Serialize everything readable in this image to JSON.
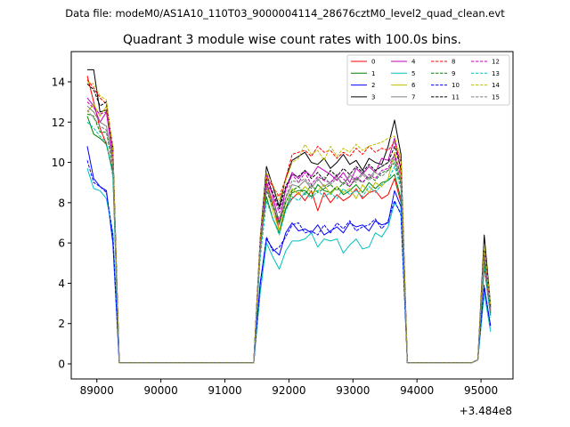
{
  "figure": {
    "suptitle": "Data file: modeM0/AS1A10_110T03_9000004114_28676cztM0_level2_quad_clean.evt"
  },
  "chart_data": {
    "type": "line",
    "title": "Quadrant 3 module wise count rates with 100.0s bins.",
    "xlabel": "",
    "ylabel": "",
    "x_offset_label": "+3.484e8",
    "xlim": [
      88600,
      95500
    ],
    "ylim": [
      -0.75,
      15.5
    ],
    "xticks": [
      89000,
      90000,
      91000,
      92000,
      93000,
      94000,
      95000
    ],
    "xtick_labels": [
      "89000",
      "90000",
      "91000",
      "92000",
      "93000",
      "94000",
      "95000"
    ],
    "yticks": [
      0,
      2,
      4,
      6,
      8,
      10,
      12,
      14
    ],
    "ytick_labels": [
      "0",
      "2",
      "4",
      "6",
      "8",
      "10",
      "12",
      "14"
    ],
    "legend_position": "top-right",
    "x": [
      88850,
      88950,
      89050,
      89150,
      89250,
      89350,
      89450,
      89550,
      89650,
      89750,
      89850,
      89950,
      90050,
      90150,
      90250,
      90350,
      90450,
      90550,
      90650,
      90750,
      90850,
      90950,
      91050,
      91150,
      91250,
      91350,
      91450,
      91550,
      91650,
      91750,
      91850,
      91950,
      92050,
      92150,
      92250,
      92350,
      92450,
      92550,
      92650,
      92750,
      92850,
      92950,
      93050,
      93150,
      93250,
      93350,
      93450,
      93550,
      93650,
      93750,
      93850,
      93950,
      94050,
      94150,
      94250,
      94350,
      94450,
      94550,
      94650,
      94750,
      94850,
      94950,
      95050,
      95150
    ],
    "series": [
      {
        "name": "0",
        "color": "#ff0000",
        "dash": "solid",
        "values": [
          14.3,
          13.0,
          11.7,
          10.9,
          9.6,
          0.05,
          0.05,
          0.05,
          0.05,
          0.05,
          0.05,
          0.05,
          0.05,
          0.05,
          0.05,
          0.05,
          0.05,
          0.05,
          0.05,
          0.05,
          0.05,
          0.05,
          0.05,
          0.05,
          0.05,
          0.05,
          0.05,
          5.8,
          9.0,
          8.0,
          6.6,
          7.7,
          8.2,
          8.5,
          8.1,
          8.6,
          7.6,
          8.5,
          8.0,
          8.4,
          8.1,
          8.3,
          8.7,
          8.2,
          8.5,
          8.6,
          8.2,
          8.4,
          9.2,
          8.0,
          0.05,
          0.05,
          0.05,
          0.05,
          0.05,
          0.05,
          0.05,
          0.05,
          0.05,
          0.05,
          0.05,
          0.2,
          4.8,
          2.4
        ]
      },
      {
        "name": "1",
        "color": "#008000",
        "dash": "solid",
        "values": [
          12.3,
          11.4,
          11.2,
          10.9,
          9.5,
          0.05,
          0.05,
          0.05,
          0.05,
          0.05,
          0.05,
          0.05,
          0.05,
          0.05,
          0.05,
          0.05,
          0.05,
          0.05,
          0.05,
          0.05,
          0.05,
          0.05,
          0.05,
          0.05,
          0.05,
          0.05,
          0.05,
          6.0,
          8.3,
          7.2,
          6.5,
          7.7,
          8.5,
          8.6,
          8.6,
          8.3,
          8.9,
          8.6,
          8.5,
          8.8,
          8.4,
          8.6,
          8.9,
          8.5,
          9.0,
          8.7,
          9.0,
          9.1,
          9.4,
          8.2,
          0.05,
          0.05,
          0.05,
          0.05,
          0.05,
          0.05,
          0.05,
          0.05,
          0.05,
          0.05,
          0.05,
          0.2,
          5.0,
          2.5
        ]
      },
      {
        "name": "2",
        "color": "#0000ff",
        "dash": "solid",
        "values": [
          10.8,
          9.2,
          8.8,
          8.6,
          6.0,
          0.05,
          0.05,
          0.05,
          0.05,
          0.05,
          0.05,
          0.05,
          0.05,
          0.05,
          0.05,
          0.05,
          0.05,
          0.05,
          0.05,
          0.05,
          0.05,
          0.05,
          0.05,
          0.05,
          0.05,
          0.05,
          0.05,
          4.0,
          6.2,
          5.7,
          5.4,
          6.5,
          7.0,
          6.6,
          6.7,
          6.5,
          6.9,
          6.4,
          6.6,
          6.8,
          6.5,
          7.0,
          6.8,
          6.9,
          6.6,
          7.1,
          6.9,
          7.0,
          8.6,
          7.8,
          0.05,
          0.05,
          0.05,
          0.05,
          0.05,
          0.05,
          0.05,
          0.05,
          0.05,
          0.05,
          0.05,
          0.2,
          3.8,
          1.9
        ]
      },
      {
        "name": "3",
        "color": "#000000",
        "dash": "solid",
        "values": [
          14.6,
          14.6,
          12.5,
          12.6,
          10.8,
          0.05,
          0.05,
          0.05,
          0.05,
          0.05,
          0.05,
          0.05,
          0.05,
          0.05,
          0.05,
          0.05,
          0.05,
          0.05,
          0.05,
          0.05,
          0.05,
          0.05,
          0.05,
          0.05,
          0.05,
          0.05,
          0.05,
          6.2,
          9.8,
          8.8,
          7.8,
          9.2,
          10.1,
          10.3,
          10.5,
          10.0,
          9.9,
          10.2,
          9.7,
          10.0,
          10.4,
          9.9,
          10.1,
          9.6,
          10.2,
          10.0,
          9.9,
          10.8,
          12.1,
          10.4,
          0.05,
          0.05,
          0.05,
          0.05,
          0.05,
          0.05,
          0.05,
          0.05,
          0.05,
          0.05,
          0.05,
          0.2,
          6.4,
          2.9
        ]
      },
      {
        "name": "4",
        "color": "#bf00bf",
        "dash": "solid",
        "values": [
          13.2,
          12.8,
          12.0,
          12.5,
          10.2,
          0.05,
          0.05,
          0.05,
          0.05,
          0.05,
          0.05,
          0.05,
          0.05,
          0.05,
          0.05,
          0.05,
          0.05,
          0.05,
          0.05,
          0.05,
          0.05,
          0.05,
          0.05,
          0.05,
          0.05,
          0.05,
          0.05,
          6.0,
          9.5,
          8.3,
          7.0,
          8.7,
          9.5,
          9.2,
          9.6,
          9.3,
          9.8,
          9.6,
          9.4,
          9.1,
          9.5,
          9.0,
          9.7,
          9.4,
          9.8,
          9.5,
          10.2,
          10.1,
          11.2,
          9.6,
          0.05,
          0.05,
          0.05,
          0.05,
          0.05,
          0.05,
          0.05,
          0.05,
          0.05,
          0.05,
          0.05,
          0.2,
          5.6,
          2.7
        ]
      },
      {
        "name": "5",
        "color": "#00bfbf",
        "dash": "solid",
        "values": [
          9.7,
          8.7,
          8.6,
          8.2,
          6.5,
          0.05,
          0.05,
          0.05,
          0.05,
          0.05,
          0.05,
          0.05,
          0.05,
          0.05,
          0.05,
          0.05,
          0.05,
          0.05,
          0.05,
          0.05,
          0.05,
          0.05,
          0.05,
          0.05,
          0.05,
          0.05,
          0.05,
          3.5,
          6.0,
          5.3,
          4.7,
          5.6,
          6.1,
          6.1,
          6.2,
          6.5,
          5.8,
          6.2,
          6.1,
          6.2,
          5.5,
          5.9,
          6.2,
          5.7,
          5.8,
          6.5,
          6.3,
          6.8,
          8.0,
          7.5,
          0.05,
          0.05,
          0.05,
          0.05,
          0.05,
          0.05,
          0.05,
          0.05,
          0.05,
          0.05,
          0.05,
          0.2,
          3.5,
          1.6
        ]
      },
      {
        "name": "6",
        "color": "#bfbf00",
        "dash": "solid",
        "values": [
          12.5,
          12.9,
          12.3,
          12.8,
          10.5,
          0.05,
          0.05,
          0.05,
          0.05,
          0.05,
          0.05,
          0.05,
          0.05,
          0.05,
          0.05,
          0.05,
          0.05,
          0.05,
          0.05,
          0.05,
          0.05,
          0.05,
          0.05,
          0.05,
          0.05,
          0.05,
          0.05,
          5.5,
          8.8,
          7.6,
          6.6,
          8.0,
          8.7,
          8.4,
          8.8,
          8.5,
          8.6,
          8.9,
          8.4,
          8.8,
          8.5,
          8.7,
          8.2,
          8.9,
          8.5,
          9.0,
          8.8,
          9.2,
          10.5,
          9.4,
          0.05,
          0.05,
          0.05,
          0.05,
          0.05,
          0.05,
          0.05,
          0.05,
          0.05,
          0.05,
          0.05,
          0.2,
          5.8,
          2.7
        ]
      },
      {
        "name": "7",
        "color": "#808080",
        "dash": "solid",
        "values": [
          12.8,
          12.5,
          12.0,
          11.8,
          10.0,
          0.05,
          0.05,
          0.05,
          0.05,
          0.05,
          0.05,
          0.05,
          0.05,
          0.05,
          0.05,
          0.05,
          0.05,
          0.05,
          0.05,
          0.05,
          0.05,
          0.05,
          0.05,
          0.05,
          0.05,
          0.05,
          0.05,
          5.7,
          8.9,
          7.9,
          6.9,
          8.2,
          8.9,
          8.8,
          9.1,
          8.7,
          9.2,
          8.8,
          9.0,
          9.3,
          8.9,
          9.4,
          9.1,
          9.5,
          9.2,
          9.6,
          9.8,
          10.0,
          10.3,
          9.0,
          0.05,
          0.05,
          0.05,
          0.05,
          0.05,
          0.05,
          0.05,
          0.05,
          0.05,
          0.05,
          0.05,
          0.2,
          5.3,
          2.6
        ]
      },
      {
        "name": "8",
        "color": "#ff0000",
        "dash": "dashed",
        "values": [
          14.1,
          13.7,
          13.2,
          12.9,
          10.6,
          0.05,
          0.05,
          0.05,
          0.05,
          0.05,
          0.05,
          0.05,
          0.05,
          0.05,
          0.05,
          0.05,
          0.05,
          0.05,
          0.05,
          0.05,
          0.05,
          0.05,
          0.05,
          0.05,
          0.05,
          0.05,
          0.05,
          6.0,
          9.3,
          8.8,
          8.3,
          9.2,
          10.4,
          10.5,
          10.6,
          10.3,
          10.8,
          10.5,
          10.6,
          10.2,
          10.5,
          10.3,
          10.7,
          10.4,
          10.8,
          10.5,
          10.7,
          10.6,
          11.0,
          10.0,
          0.05,
          0.05,
          0.05,
          0.05,
          0.05,
          0.05,
          0.05,
          0.05,
          0.05,
          0.05,
          0.05,
          0.2,
          5.6,
          2.8
        ]
      },
      {
        "name": "9",
        "color": "#008000",
        "dash": "dashed",
        "values": [
          12.4,
          12.3,
          11.5,
          11.5,
          9.8,
          0.05,
          0.05,
          0.05,
          0.05,
          0.05,
          0.05,
          0.05,
          0.05,
          0.05,
          0.05,
          0.05,
          0.05,
          0.05,
          0.05,
          0.05,
          0.05,
          0.05,
          0.05,
          0.05,
          0.05,
          0.05,
          0.05,
          5.6,
          8.6,
          7.8,
          7.0,
          8.0,
          8.6,
          8.8,
          8.4,
          8.9,
          8.5,
          8.7,
          8.9,
          8.6,
          9.0,
          8.8,
          9.2,
          9.0,
          9.3,
          9.1,
          9.5,
          9.6,
          10.0,
          8.9,
          0.05,
          0.05,
          0.05,
          0.05,
          0.05,
          0.05,
          0.05,
          0.05,
          0.05,
          0.05,
          0.05,
          0.2,
          5.2,
          2.5
        ]
      },
      {
        "name": "10",
        "color": "#0000ff",
        "dash": "dashed",
        "values": [
          10.1,
          9.0,
          8.8,
          8.5,
          6.4,
          0.05,
          0.05,
          0.05,
          0.05,
          0.05,
          0.05,
          0.05,
          0.05,
          0.05,
          0.05,
          0.05,
          0.05,
          0.05,
          0.05,
          0.05,
          0.05,
          0.05,
          0.05,
          0.05,
          0.05,
          0.05,
          0.05,
          3.9,
          6.3,
          5.6,
          5.8,
          6.3,
          6.9,
          7.0,
          6.5,
          6.6,
          6.4,
          6.9,
          6.5,
          7.0,
          6.7,
          7.1,
          6.6,
          6.8,
          6.9,
          7.2,
          6.7,
          7.1,
          8.1,
          7.4,
          0.05,
          0.05,
          0.05,
          0.05,
          0.05,
          0.05,
          0.05,
          0.05,
          0.05,
          0.05,
          0.05,
          0.2,
          3.9,
          1.8
        ]
      },
      {
        "name": "11",
        "color": "#000000",
        "dash": "dashed",
        "values": [
          13.9,
          13.6,
          12.8,
          13.0,
          10.7,
          0.05,
          0.05,
          0.05,
          0.05,
          0.05,
          0.05,
          0.05,
          0.05,
          0.05,
          0.05,
          0.05,
          0.05,
          0.05,
          0.05,
          0.05,
          0.05,
          0.05,
          0.05,
          0.05,
          0.05,
          0.05,
          0.05,
          5.9,
          9.2,
          8.5,
          7.7,
          8.8,
          9.4,
          9.3,
          9.6,
          9.2,
          9.5,
          9.1,
          9.6,
          9.3,
          9.7,
          9.4,
          9.8,
          9.5,
          9.9,
          9.6,
          9.8,
          10.0,
          10.8,
          9.7,
          0.05,
          0.05,
          0.05,
          0.05,
          0.05,
          0.05,
          0.05,
          0.05,
          0.05,
          0.05,
          0.05,
          0.2,
          5.7,
          2.8
        ]
      },
      {
        "name": "12",
        "color": "#bf00bf",
        "dash": "dashed",
        "values": [
          13.0,
          12.7,
          12.4,
          12.5,
          10.4,
          0.05,
          0.05,
          0.05,
          0.05,
          0.05,
          0.05,
          0.05,
          0.05,
          0.05,
          0.05,
          0.05,
          0.05,
          0.05,
          0.05,
          0.05,
          0.05,
          0.05,
          0.05,
          0.05,
          0.05,
          0.05,
          0.05,
          5.8,
          9.0,
          8.4,
          7.5,
          8.6,
          9.4,
          9.0,
          9.5,
          8.9,
          9.3,
          9.1,
          9.0,
          9.4,
          9.2,
          8.8,
          9.3,
          9.0,
          9.4,
          9.2,
          9.6,
          9.7,
          10.4,
          9.3,
          0.05,
          0.05,
          0.05,
          0.05,
          0.05,
          0.05,
          0.05,
          0.05,
          0.05,
          0.05,
          0.05,
          0.2,
          5.5,
          2.6
        ]
      },
      {
        "name": "13",
        "color": "#00bfbf",
        "dash": "dashed",
        "values": [
          12.0,
          11.7,
          11.3,
          11.0,
          9.3,
          0.05,
          0.05,
          0.05,
          0.05,
          0.05,
          0.05,
          0.05,
          0.05,
          0.05,
          0.05,
          0.05,
          0.05,
          0.05,
          0.05,
          0.05,
          0.05,
          0.05,
          0.05,
          0.05,
          0.05,
          0.05,
          0.05,
          5.2,
          8.1,
          7.2,
          6.4,
          7.6,
          8.3,
          8.1,
          8.5,
          8.2,
          8.6,
          8.3,
          8.5,
          8.2,
          8.7,
          8.4,
          8.6,
          8.3,
          8.8,
          8.5,
          8.9,
          9.1,
          9.8,
          8.7,
          0.05,
          0.05,
          0.05,
          0.05,
          0.05,
          0.05,
          0.05,
          0.05,
          0.05,
          0.05,
          0.05,
          0.2,
          4.9,
          2.3
        ]
      },
      {
        "name": "14",
        "color": "#bfbf00",
        "dash": "dashed",
        "values": [
          14.0,
          13.9,
          13.3,
          13.1,
          10.7,
          0.05,
          0.05,
          0.05,
          0.05,
          0.05,
          0.05,
          0.05,
          0.05,
          0.05,
          0.05,
          0.05,
          0.05,
          0.05,
          0.05,
          0.05,
          0.05,
          0.05,
          0.05,
          0.05,
          0.05,
          0.05,
          0.05,
          6.1,
          9.5,
          8.9,
          8.1,
          9.1,
          10.0,
          10.2,
          10.9,
          10.4,
          10.6,
          10.1,
          10.8,
          10.3,
          10.7,
          10.5,
          10.9,
          10.6,
          10.8,
          10.9,
          11.0,
          11.2,
          11.3,
          10.1,
          0.05,
          0.05,
          0.05,
          0.05,
          0.05,
          0.05,
          0.05,
          0.05,
          0.05,
          0.05,
          0.05,
          0.2,
          5.9,
          2.9
        ]
      },
      {
        "name": "15",
        "color": "#808080",
        "dash": "dashed",
        "values": [
          12.6,
          12.2,
          11.8,
          11.6,
          9.9,
          0.05,
          0.05,
          0.05,
          0.05,
          0.05,
          0.05,
          0.05,
          0.05,
          0.05,
          0.05,
          0.05,
          0.05,
          0.05,
          0.05,
          0.05,
          0.05,
          0.05,
          0.05,
          0.05,
          0.05,
          0.05,
          0.05,
          5.6,
          8.7,
          7.9,
          7.2,
          8.3,
          9.1,
          9.0,
          9.2,
          8.8,
          9.1,
          9.3,
          8.9,
          9.2,
          8.9,
          9.3,
          9.0,
          9.4,
          9.1,
          9.5,
          9.3,
          9.6,
          10.2,
          9.1,
          0.05,
          0.05,
          0.05,
          0.05,
          0.05,
          0.05,
          0.05,
          0.05,
          0.05,
          0.05,
          0.05,
          0.2,
          5.4,
          2.6
        ]
      }
    ]
  }
}
